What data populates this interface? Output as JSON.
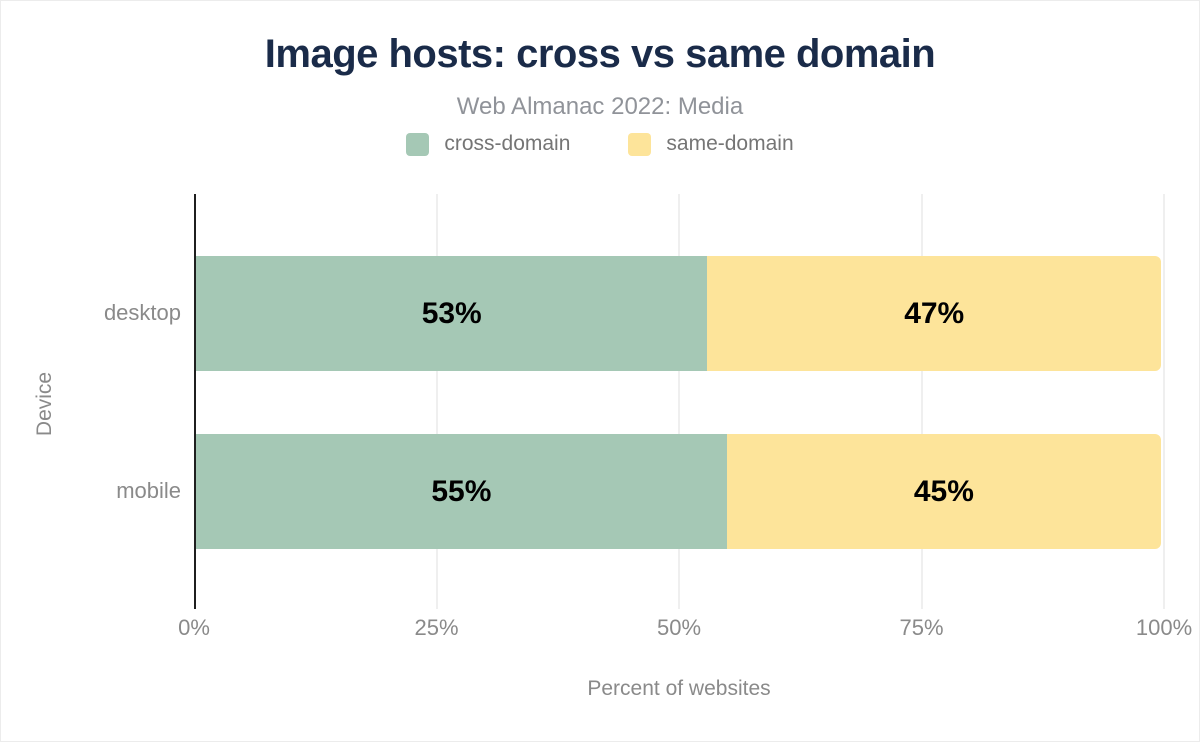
{
  "chart_data": {
    "type": "bar",
    "orientation": "horizontal",
    "stacked": true,
    "title": "Image hosts: cross vs same domain",
    "subtitle": "Web Almanac 2022: Media",
    "categories": [
      "desktop",
      "mobile"
    ],
    "series": [
      {
        "name": "cross-domain",
        "color": "#a5c8b5",
        "values": [
          53,
          55
        ]
      },
      {
        "name": "same-domain",
        "color": "#fde49a",
        "values": [
          47,
          45
        ]
      }
    ],
    "value_label_suffix": "%",
    "bar_labels": [
      [
        "53%",
        "47%"
      ],
      [
        "55%",
        "45%"
      ]
    ],
    "xlabel": "Percent of websites",
    "ylabel": "Device",
    "x_ticks": [
      "0%",
      "25%",
      "50%",
      "75%",
      "100%"
    ],
    "xlim": [
      0,
      100
    ],
    "grid": "vertical",
    "legend_position": "top"
  },
  "colors": {
    "title_text": "#1a2b49",
    "subtitle_text": "#909399",
    "legend_text": "#757575",
    "axis_text": "#8a8a8a",
    "bar_value_text": "#000000",
    "gridline": "#efefef",
    "axis_line": "#1f1f1f",
    "background": "#ffffff",
    "cross_domain_green": "#a5c8b5",
    "same_domain_yellow": "#fde49a"
  }
}
